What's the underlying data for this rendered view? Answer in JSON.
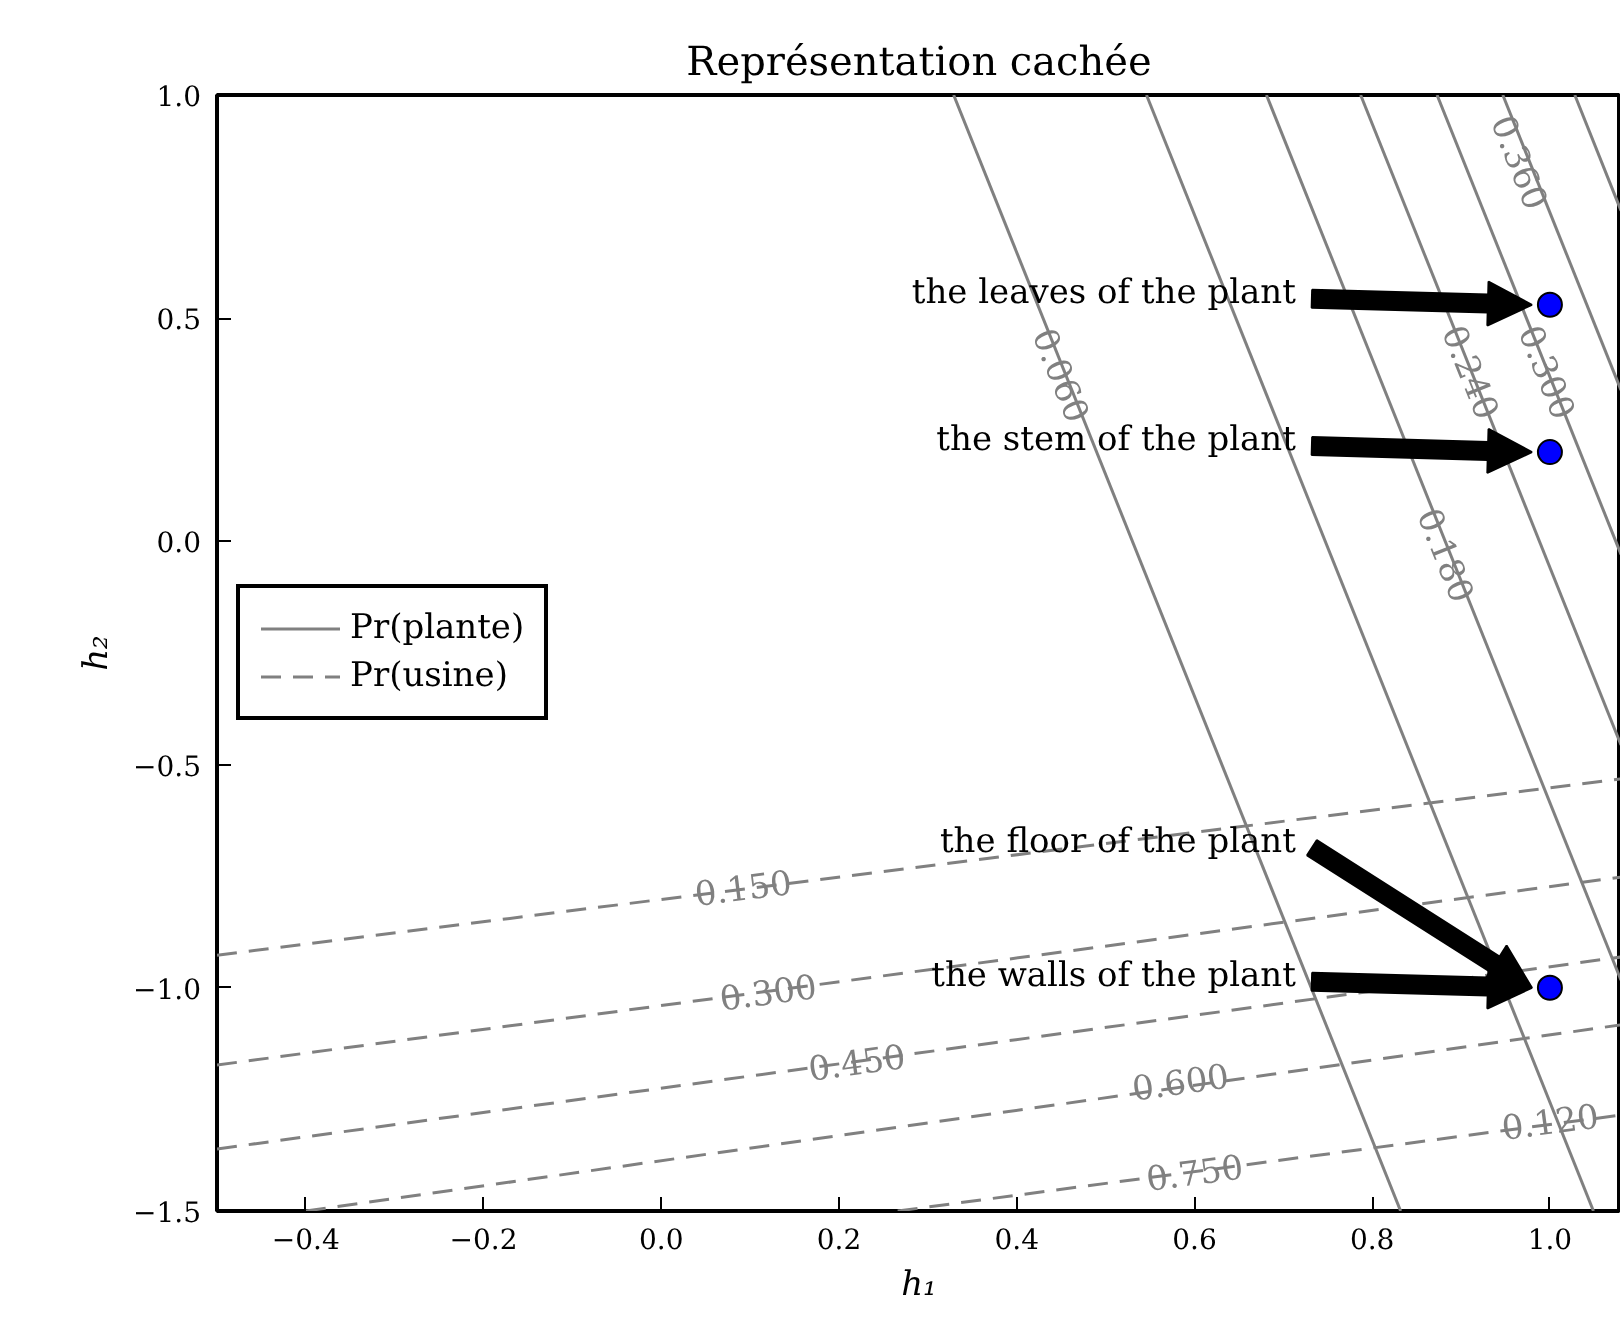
{
  "chart_data": {
    "type": "line",
    "title": "Représentation cachée",
    "xlabel": "h₁",
    "ylabel": "h₂",
    "xlim": [
      -0.5,
      1.08
    ],
    "ylim": [
      -1.5,
      1.0
    ],
    "xticks": [
      {
        "value": -0.4,
        "label": "−0.4"
      },
      {
        "value": -0.2,
        "label": "−0.2"
      },
      {
        "value": 0.0,
        "label": "0.0"
      },
      {
        "value": 0.2,
        "label": "0.2"
      },
      {
        "value": 0.4,
        "label": "0.4"
      },
      {
        "value": 0.6,
        "label": "0.6"
      },
      {
        "value": 0.8,
        "label": "0.8"
      },
      {
        "value": 1.0,
        "label": "1.0"
      }
    ],
    "yticks": [
      {
        "value": -1.5,
        "label": "−1.5"
      },
      {
        "value": -1.0,
        "label": "−1.0"
      },
      {
        "value": -0.5,
        "label": "−0.5"
      },
      {
        "value": 0.0,
        "label": "0.0"
      },
      {
        "value": 0.5,
        "label": "0.5"
      },
      {
        "value": 1.0,
        "label": "1.0"
      }
    ],
    "grid": false,
    "legend": "left",
    "series": [
      {
        "name": "Pr(plante)",
        "line_style": "solid",
        "color": "#808080",
        "x": [
          0.329,
          0.832
        ],
        "values": [
          1.0,
          -1.5
        ]
      },
      {
        "line_style": "solid",
        "color": "#808080",
        "x": [
          0.546,
          1.049
        ],
        "values": [
          1.0,
          -1.5
        ]
      },
      {
        "line_style": "solid",
        "color": "#808080",
        "x": [
          0.681,
          1.08
        ],
        "values": [
          1.0,
          -0.983
        ]
      },
      {
        "line_style": "solid",
        "color": "#808080",
        "x": [
          0.787,
          1.08
        ],
        "values": [
          1.0,
          -0.456
        ]
      },
      {
        "line_style": "solid",
        "color": "#808080",
        "x": [
          0.873,
          1.08
        ],
        "values": [
          1.0,
          -0.029
        ]
      },
      {
        "line_style": "solid",
        "color": "#808080",
        "x": [
          0.947,
          1.08
        ],
        "values": [
          1.0,
          0.339
        ]
      },
      {
        "line_style": "solid",
        "color": "#808080",
        "x": [
          1.028,
          1.08
        ],
        "values": [
          1.0,
          0.741
        ]
      },
      {
        "name": "Pr(usine)",
        "line_style": "dashed",
        "color": "#808080",
        "x": [
          -0.5,
          1.08
        ],
        "values": [
          -0.927,
          -0.532
        ]
      },
      {
        "line_style": "dashed",
        "color": "#808080",
        "x": [
          -0.5,
          1.08
        ],
        "values": [
          -1.173,
          -0.752
        ]
      },
      {
        "line_style": "dashed",
        "color": "#808080",
        "x": [
          -0.5,
          1.08
        ],
        "values": [
          -1.361,
          -0.931
        ]
      },
      {
        "line_style": "dashed",
        "color": "#808080",
        "x": [
          -0.4,
          1.08
        ],
        "values": [
          -1.5,
          -1.083
        ]
      },
      {
        "line_style": "dashed",
        "color": "#808080",
        "x": [
          0.266,
          1.08
        ],
        "values": [
          -1.5,
          -1.285
        ]
      },
      {
        "type": "scatter",
        "marker": "circle",
        "color": "#0000ff",
        "x": [
          1.0,
          1.0,
          1.0
        ],
        "values": [
          0.53,
          0.2,
          -1.0
        ]
      }
    ],
    "annotations": [
      "the leaves of the plant",
      "the stem of the plant",
      "the floor of the plant",
      "the walls of the plant",
      {
        "text": "0.060",
        "x": 0.451,
        "y": 0.373
      },
      {
        "text": "0.120",
        "x": 1.0,
        "y": -1.298
      },
      {
        "text": "0.180",
        "x": 0.884,
        "y": -0.03
      },
      {
        "text": "0.240",
        "x": 0.912,
        "y": 0.38
      },
      {
        "text": "0.300",
        "x": 0.998,
        "y": 0.38
      },
      {
        "text": "0.360",
        "x": 0.967,
        "y": 0.85
      },
      {
        "text": "0.150",
        "x": 0.092,
        "y": -0.774
      },
      {
        "text": "0.300",
        "x": 0.12,
        "y": -1.008
      },
      {
        "text": "0.450",
        "x": 0.22,
        "y": -1.165
      },
      {
        "text": "0.600",
        "x": 0.584,
        "y": -1.209
      },
      {
        "text": "0.750",
        "x": 0.6,
        "y": -1.412
      }
    ]
  }
}
